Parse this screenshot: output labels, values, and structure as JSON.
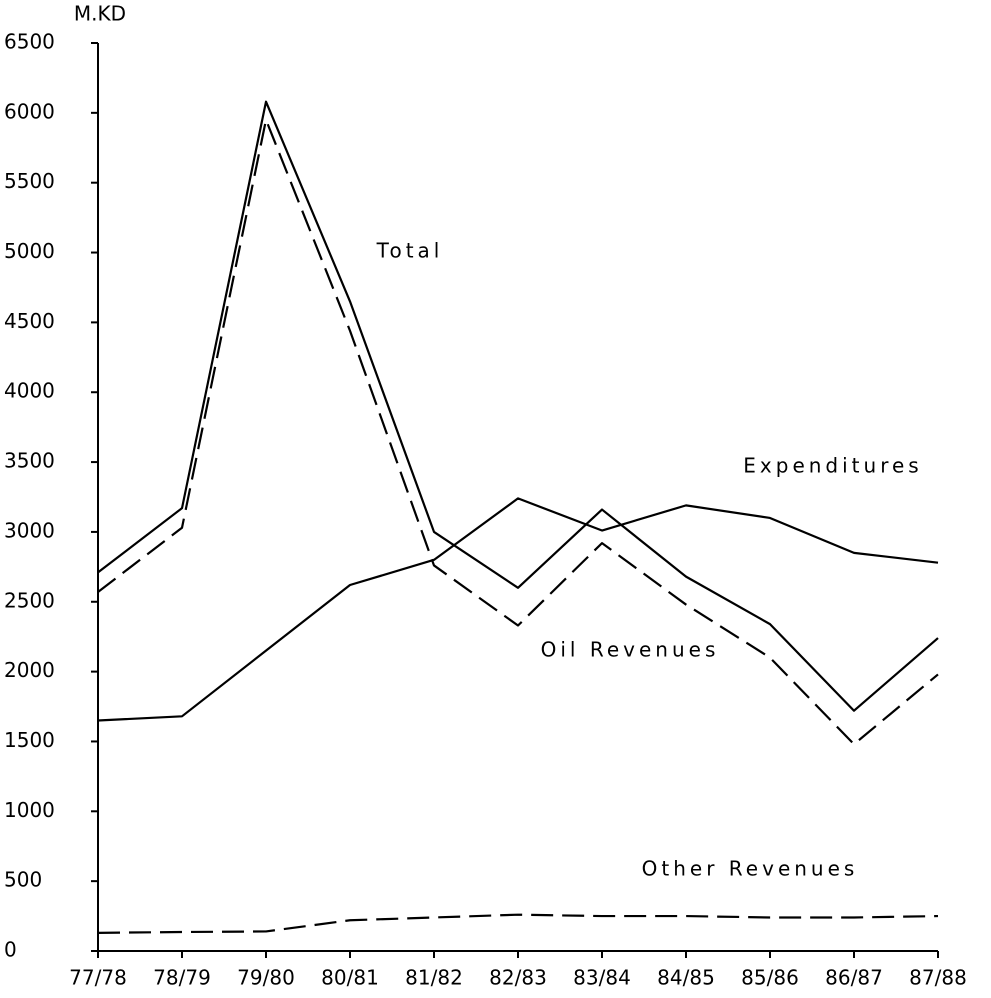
{
  "chart_data": {
    "type": "line",
    "y_label": "M.KD",
    "categories": [
      "77/78",
      "78/79",
      "79/80",
      "80/81",
      "81/82",
      "82/83",
      "83/84",
      "84/85",
      "85/86",
      "86/87",
      "87/88"
    ],
    "series": [
      {
        "name": "Total",
        "color": "#000000",
        "dash": false,
        "values": [
          2710,
          3170,
          6080,
          4650,
          3000,
          2600,
          3160,
          2680,
          2340,
          1720,
          2240
        ]
      },
      {
        "name": "Expenditures",
        "color": "#000000",
        "dash": false,
        "values": [
          1650,
          1680,
          2150,
          2620,
          2800,
          3240,
          3010,
          3190,
          3100,
          2850,
          2780
        ]
      },
      {
        "name": "Oil Revenues",
        "color": "#000000",
        "dash": true,
        "values": [
          2570,
          3030,
          5950,
          4440,
          2760,
          2330,
          2920,
          2480,
          2100,
          1480,
          1980
        ]
      },
      {
        "name": "Other Revenues",
        "color": "#000000",
        "dash": true,
        "values": [
          130,
          136,
          140,
          220,
          240,
          260,
          250,
          250,
          240,
          240,
          250
        ]
      }
    ],
    "ylim": [
      0,
      6500
    ],
    "yticks": [
      0,
      500,
      1000,
      1500,
      2000,
      2500,
      3000,
      3500,
      4000,
      4500,
      5000,
      5500,
      6000,
      6500
    ],
    "grid": false
  }
}
